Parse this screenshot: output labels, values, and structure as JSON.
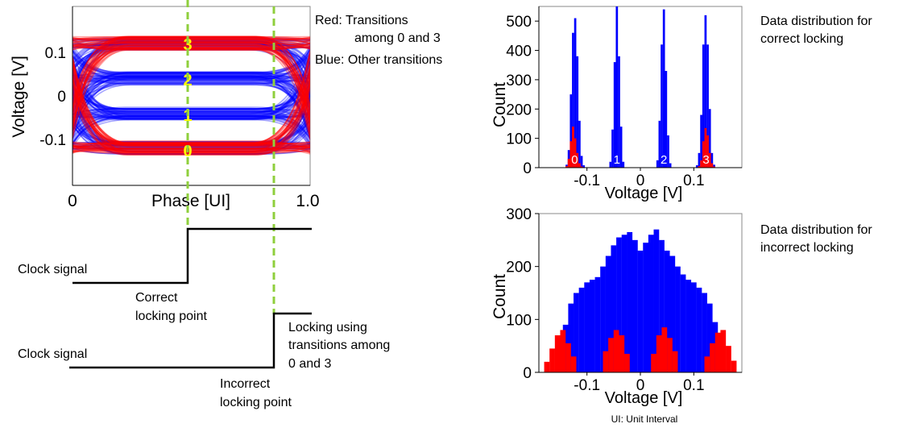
{
  "colors": {
    "red": "#ff0000",
    "blue": "#0000ff",
    "level_label": "#ffff00",
    "dashed_marker": "#8fcf3c",
    "clock_line": "#000000"
  },
  "eye": {
    "ylabel": "Voltage [V]",
    "xlabel": "Phase [UI]",
    "yticks": [
      "0.1",
      "0",
      "-0.1"
    ],
    "xticks": [
      "0",
      "1.0"
    ],
    "levels": [
      "3",
      "2",
      "1",
      "0"
    ],
    "legend_red_line1": "Red: Transitions",
    "legend_red_line2": "among 0 and 3",
    "legend_blue": "Blue: Other transitions"
  },
  "clock": {
    "signal_label_1": "Clock signal",
    "correct_line1": "Correct",
    "correct_line2": "locking point",
    "signal_label_2": "Clock signal",
    "note_line1": "Locking using",
    "note_line2": "transitions among",
    "note_line3": "0 and 3",
    "incorrect_line1": "Incorrect",
    "incorrect_line2": "locking point"
  },
  "captions": {
    "correct_line1": "Data distribution for",
    "correct_line2": "correct locking",
    "incorrect_line1": "Data distribution for",
    "incorrect_line2": "incorrect locking",
    "footnote": "UI: Unit Interval"
  },
  "chart_data": [
    {
      "type": "bar",
      "ylabel": "Count",
      "xlabel": "Voltage [V]",
      "xlim": [
        -0.19,
        0.19
      ],
      "ylim": [
        0,
        550
      ],
      "xticks": [
        "-0.1",
        "0",
        "0.1"
      ],
      "yticks": [
        "0",
        "100",
        "200",
        "300",
        "400",
        "500"
      ],
      "level_labels": [
        "0",
        "1",
        "2",
        "3"
      ],
      "series": [
        {
          "color": "blue",
          "x": [
            -0.138,
            -0.134,
            -0.13,
            -0.126,
            -0.122,
            -0.118,
            -0.114,
            -0.11,
            -0.106,
            -0.056,
            -0.052,
            -0.048,
            -0.044,
            -0.04,
            -0.036,
            -0.032,
            0.032,
            0.036,
            0.04,
            0.044,
            0.048,
            0.052,
            0.056,
            0.106,
            0.11,
            0.114,
            0.118,
            0.122,
            0.126,
            0.13,
            0.134,
            0.138
          ],
          "values": [
            10,
            60,
            250,
            460,
            510,
            380,
            160,
            40,
            8,
            20,
            130,
            360,
            550,
            380,
            140,
            20,
            25,
            160,
            420,
            540,
            330,
            110,
            15,
            8,
            50,
            180,
            420,
            520,
            420,
            200,
            50,
            10
          ]
        },
        {
          "color": "red",
          "x": [
            -0.138,
            -0.134,
            -0.13,
            -0.126,
            -0.122,
            -0.118,
            -0.114,
            -0.11,
            0.11,
            0.114,
            0.118,
            0.122,
            0.126,
            0.13,
            0.134,
            0.138
          ],
          "values": [
            5,
            30,
            90,
            140,
            100,
            50,
            15,
            4,
            5,
            25,
            90,
            135,
            110,
            50,
            15,
            4
          ]
        }
      ]
    },
    {
      "type": "bar",
      "ylabel": "Count",
      "xlabel": "Voltage [V]",
      "xlim": [
        -0.19,
        0.19
      ],
      "ylim": [
        0,
        300
      ],
      "xticks": [
        "-0.1",
        "0",
        "0.1"
      ],
      "yticks": [
        "0",
        "100",
        "200",
        "300"
      ],
      "series": [
        {
          "color": "blue",
          "x": [
            -0.14,
            -0.13,
            -0.12,
            -0.11,
            -0.1,
            -0.09,
            -0.08,
            -0.07,
            -0.06,
            -0.05,
            -0.04,
            -0.03,
            -0.02,
            -0.01,
            0.0,
            0.01,
            0.02,
            0.03,
            0.04,
            0.05,
            0.06,
            0.07,
            0.08,
            0.09,
            0.1,
            0.11,
            0.12,
            0.13,
            0.14
          ],
          "values": [
            90,
            130,
            150,
            160,
            170,
            175,
            180,
            200,
            220,
            240,
            255,
            260,
            265,
            250,
            230,
            245,
            260,
            270,
            250,
            230,
            220,
            200,
            185,
            175,
            170,
            160,
            150,
            130,
            95
          ]
        },
        {
          "color": "red",
          "x": [
            -0.175,
            -0.165,
            -0.155,
            -0.145,
            -0.135,
            -0.125,
            -0.065,
            -0.055,
            -0.045,
            -0.035,
            -0.025,
            0.025,
            0.035,
            0.045,
            0.055,
            0.065,
            0.125,
            0.135,
            0.145,
            0.155,
            0.165,
            0.175
          ],
          "values": [
            20,
            45,
            70,
            80,
            55,
            30,
            40,
            65,
            80,
            70,
            35,
            35,
            70,
            85,
            65,
            40,
            30,
            55,
            75,
            80,
            50,
            22
          ]
        }
      ]
    }
  ]
}
